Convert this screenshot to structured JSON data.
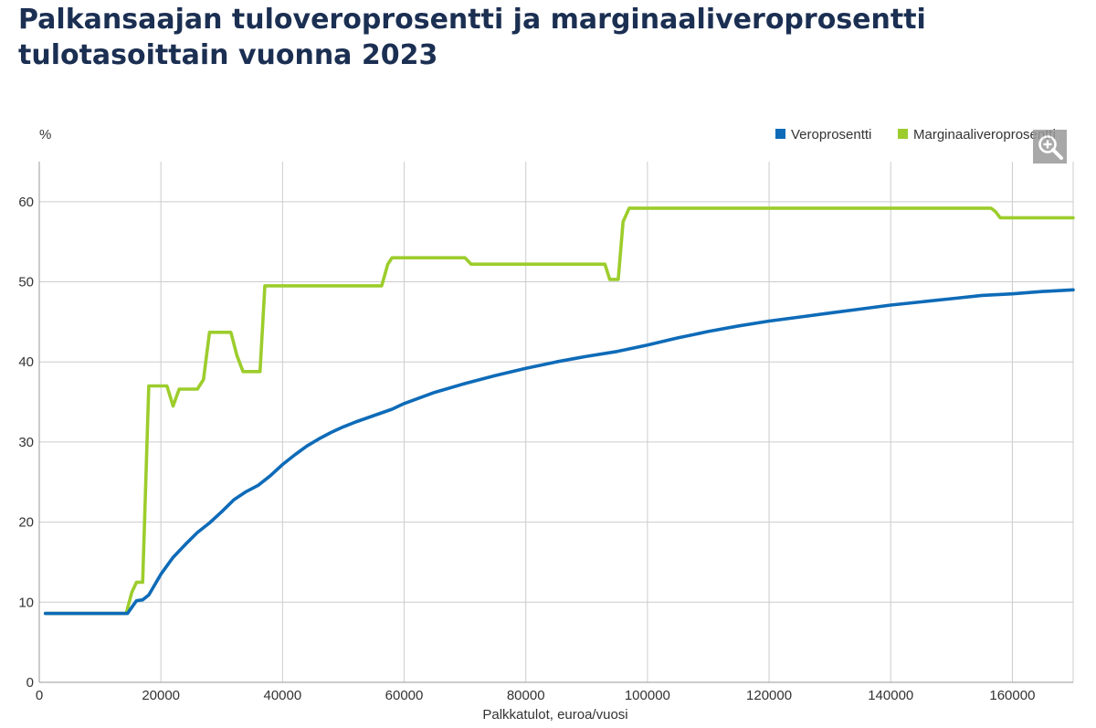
{
  "title": "Palkansaajan tuloveroprosentti ja marginaaliveroprosentti tulotasoittain vuonna 2023",
  "zoom_button": {
    "icon": "zoom-in-icon"
  },
  "chart_data": {
    "type": "line",
    "title": "Palkansaajan tuloveroprosentti ja marginaaliveroprosentti tulotasoittain vuonna 2023",
    "xlabel": "Palkkatulot, euroa/vuosi",
    "ylabel": "%",
    "xlim": [
      0,
      170000
    ],
    "ylim": [
      0,
      65
    ],
    "x_ticks": [
      0,
      20000,
      40000,
      60000,
      80000,
      100000,
      120000,
      140000,
      160000
    ],
    "y_ticks": [
      0,
      10,
      20,
      30,
      40,
      50,
      60
    ],
    "x_tick_labels": [
      "0",
      "20000",
      "40000",
      "60000",
      "80000",
      "100000",
      "120000",
      "140000",
      "160000"
    ],
    "y_tick_labels": [
      "0",
      "10",
      "20",
      "30",
      "40",
      "50",
      "60"
    ],
    "grid": true,
    "legend_position": "top-right",
    "series": [
      {
        "name": "Veroprosentti",
        "color": "#0e6bb8",
        "points": [
          [
            1000,
            8.6
          ],
          [
            14500,
            8.6
          ],
          [
            16000,
            10.2
          ],
          [
            17000,
            10.3
          ],
          [
            18000,
            10.9
          ],
          [
            20000,
            13.5
          ],
          [
            22000,
            15.6
          ],
          [
            24000,
            17.2
          ],
          [
            26000,
            18.7
          ],
          [
            28000,
            19.9
          ],
          [
            30000,
            21.3
          ],
          [
            32000,
            22.8
          ],
          [
            34000,
            23.8
          ],
          [
            36000,
            24.6
          ],
          [
            38000,
            25.8
          ],
          [
            40000,
            27.2
          ],
          [
            42000,
            28.4
          ],
          [
            44000,
            29.5
          ],
          [
            46000,
            30.4
          ],
          [
            48000,
            31.2
          ],
          [
            50000,
            31.9
          ],
          [
            52000,
            32.5
          ],
          [
            55000,
            33.3
          ],
          [
            58000,
            34.1
          ],
          [
            60000,
            34.8
          ],
          [
            65000,
            36.2
          ],
          [
            70000,
            37.3
          ],
          [
            75000,
            38.3
          ],
          [
            80000,
            39.2
          ],
          [
            85000,
            40.0
          ],
          [
            90000,
            40.7
          ],
          [
            95000,
            41.3
          ],
          [
            100000,
            42.1
          ],
          [
            105000,
            43.0
          ],
          [
            110000,
            43.8
          ],
          [
            115000,
            44.5
          ],
          [
            120000,
            45.1
          ],
          [
            125000,
            45.6
          ],
          [
            130000,
            46.1
          ],
          [
            135000,
            46.6
          ],
          [
            140000,
            47.1
          ],
          [
            145000,
            47.5
          ],
          [
            150000,
            47.9
          ],
          [
            155000,
            48.3
          ],
          [
            160000,
            48.5
          ],
          [
            165000,
            48.8
          ],
          [
            170000,
            49.0
          ]
        ]
      },
      {
        "name": "Marginaaliveroprosentti",
        "color": "#9ccd2c",
        "points": [
          [
            1000,
            8.6
          ],
          [
            14300,
            8.6
          ],
          [
            15200,
            11.2
          ],
          [
            16000,
            12.5
          ],
          [
            17000,
            12.5
          ],
          [
            18000,
            37.0
          ],
          [
            21000,
            37.0
          ],
          [
            22000,
            34.5
          ],
          [
            23000,
            36.6
          ],
          [
            26000,
            36.6
          ],
          [
            27000,
            37.8
          ],
          [
            28000,
            43.7
          ],
          [
            31500,
            43.7
          ],
          [
            32500,
            40.8
          ],
          [
            33500,
            38.8
          ],
          [
            36300,
            38.8
          ],
          [
            37100,
            49.5
          ],
          [
            56300,
            49.5
          ],
          [
            57300,
            52.2
          ],
          [
            58000,
            53.0
          ],
          [
            70000,
            53.0
          ],
          [
            71000,
            52.2
          ],
          [
            93000,
            52.2
          ],
          [
            93800,
            50.3
          ],
          [
            95200,
            50.3
          ],
          [
            96000,
            57.5
          ],
          [
            97000,
            59.2
          ],
          [
            156500,
            59.2
          ],
          [
            157200,
            58.8
          ],
          [
            158000,
            58.0
          ],
          [
            170000,
            58.0
          ]
        ]
      }
    ]
  }
}
